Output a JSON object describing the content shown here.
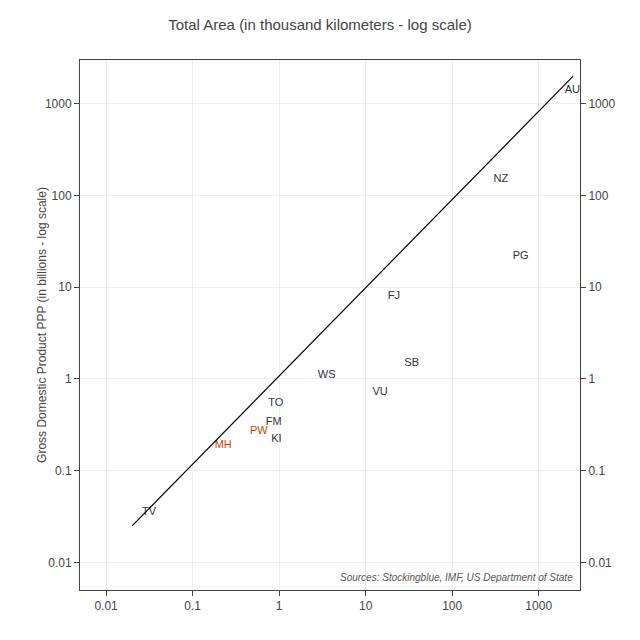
{
  "chart_data": {
    "type": "scatter",
    "title": "Total Area (in thousand kilometers - log scale)",
    "ylabel": "Gross Domestic Product PPP (in billions - log scale)",
    "annotations": [
      "Sources: Stockingblue, IMF, US Department of State"
    ],
    "log": true,
    "grid": true,
    "xlim": [
      0.005,
      3000
    ],
    "ylim": [
      0.005,
      3000
    ],
    "y2lim": [
      0.005,
      3000
    ],
    "xticks": [
      0.01,
      0.1,
      1,
      10,
      100,
      1000
    ],
    "yticks": [
      0.01,
      0.1,
      1,
      10,
      100,
      1000
    ],
    "y2ticks": [
      0.01,
      0.1,
      1,
      10,
      100,
      1000
    ],
    "series": [
      {
        "type": "scatter",
        "marker": "text",
        "x": [
          2000,
          300,
          500,
          18,
          28,
          2.8,
          12,
          0.75,
          0.7,
          0.46,
          0.81,
          0.18,
          0.026
        ],
        "values": [
          1400,
          150,
          22,
          8.0,
          1.5,
          1.1,
          0.72,
          0.55,
          0.34,
          0.27,
          0.22,
          0.19,
          0.035
        ],
        "labels": [
          "AU",
          "NZ",
          "PG",
          "FJ",
          "SB",
          "WS",
          "VU",
          "TO",
          "FM",
          "PW",
          "KI",
          "MH",
          "TV"
        ],
        "colors": [
          "#333333",
          "#333333",
          "#333333",
          "#333333",
          "#333333",
          "#333333",
          "#333333",
          "#333333",
          "#333333",
          "#CC4400",
          "#333333",
          "#CC4400",
          "#333333"
        ]
      },
      {
        "type": "line",
        "line_style": "solid",
        "color": "#000000",
        "x": [
          0.02,
          2500
        ],
        "values": [
          0.025,
          2000
        ]
      }
    ]
  }
}
